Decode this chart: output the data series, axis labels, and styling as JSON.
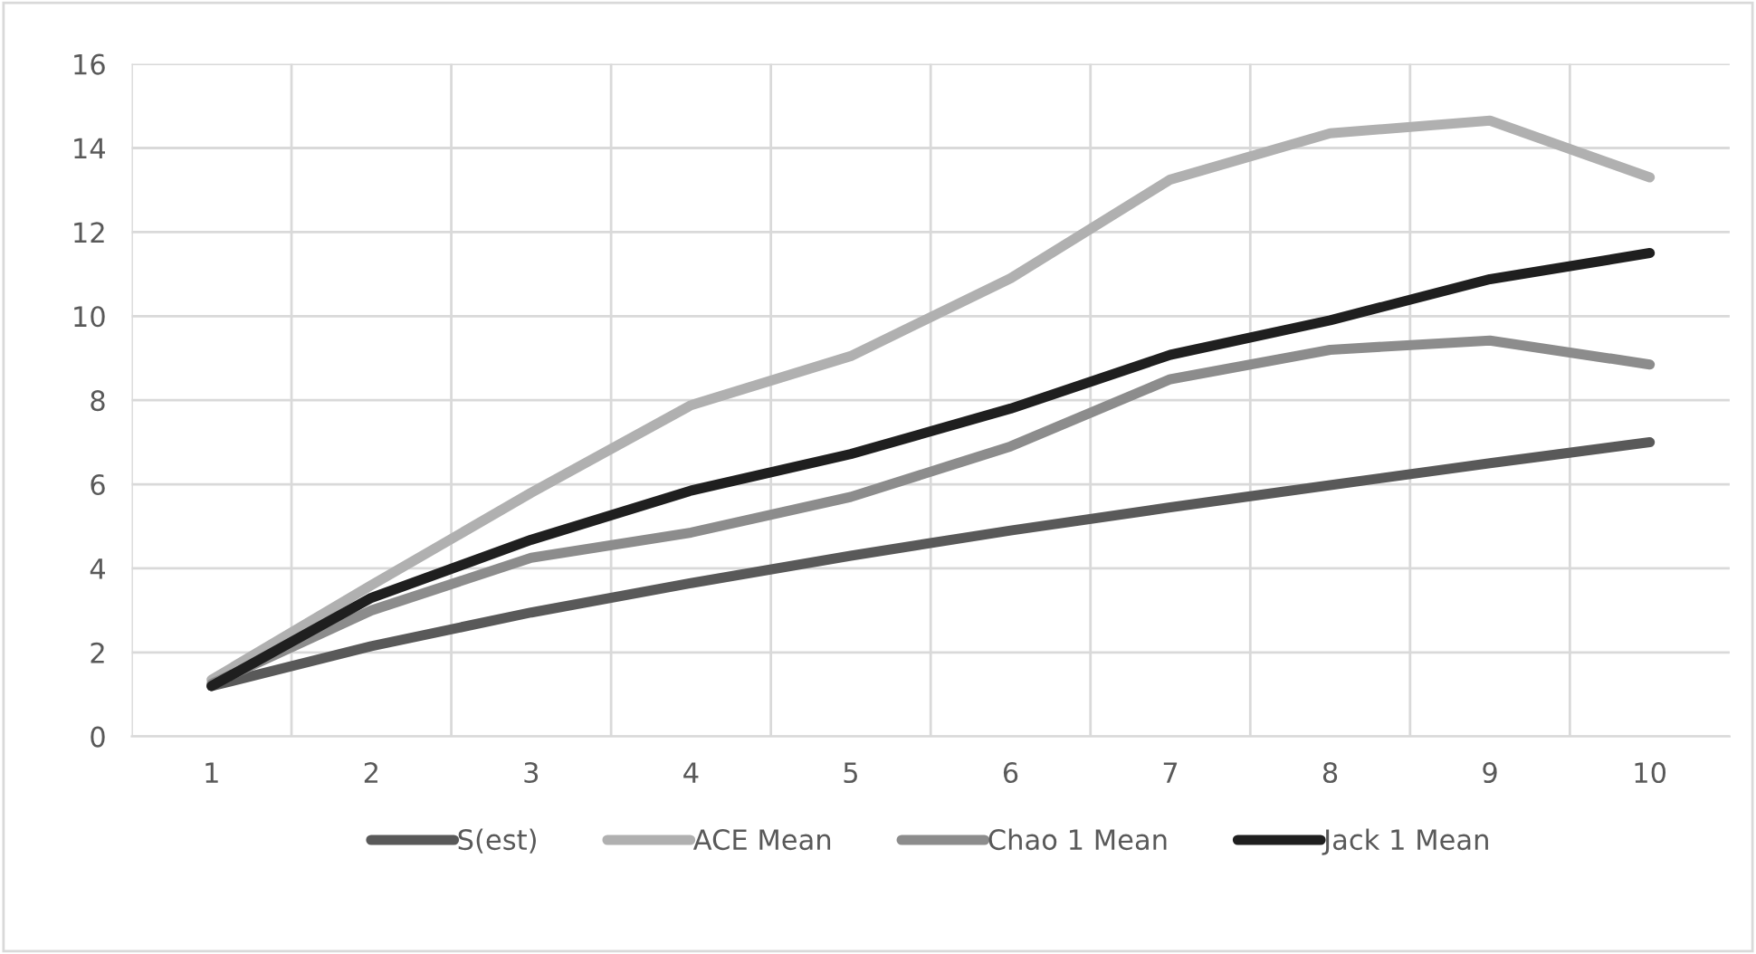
{
  "chart_data": {
    "type": "line",
    "categories": [
      "1",
      "2",
      "3",
      "4",
      "5",
      "6",
      "7",
      "8",
      "9",
      "10"
    ],
    "series": [
      {
        "name": "S(est)",
        "color": "#595959",
        "values": [
          1.2,
          2.15,
          2.95,
          3.65,
          4.3,
          4.9,
          5.45,
          5.98,
          6.5,
          7.0
        ]
      },
      {
        "name": "ACE Mean",
        "color": "#b0b0b0",
        "values": [
          1.35,
          3.6,
          5.8,
          7.88,
          9.05,
          10.9,
          13.25,
          14.35,
          14.65,
          13.3
        ]
      },
      {
        "name": "Chao 1 Mean",
        "color": "#8c8c8c",
        "values": [
          1.25,
          3.0,
          4.25,
          4.85,
          5.7,
          6.9,
          8.5,
          9.2,
          9.42,
          8.85
        ]
      },
      {
        "name": "Jack 1 Mean",
        "color": "#1f1f1f",
        "values": [
          1.2,
          3.3,
          4.68,
          5.85,
          6.72,
          7.8,
          9.08,
          9.9,
          10.88,
          11.5
        ]
      }
    ],
    "ylim": [
      0,
      16
    ],
    "yticks": [
      0,
      2,
      4,
      6,
      8,
      10,
      12,
      14,
      16
    ],
    "grid": true,
    "legend": "bottom",
    "line_style": "solid"
  }
}
